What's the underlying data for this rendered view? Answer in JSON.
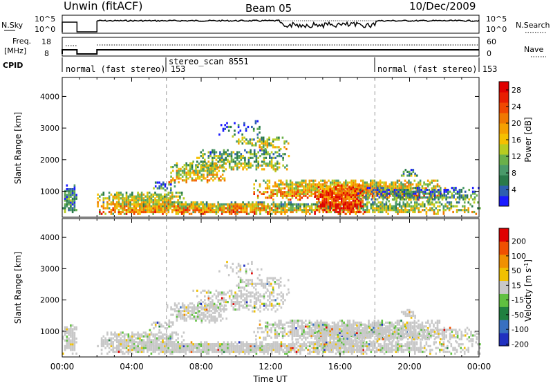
{
  "header": {
    "title": "Unwin (fitACF)",
    "beam": "Beam 05",
    "date": "10/Dec/2009"
  },
  "noise_panel": {
    "left_label": "N.Sky",
    "left_ticks": [
      "10^5",
      "10^0"
    ],
    "right_label": "N.Search",
    "right_ticks": [
      "10^5",
      "10^0"
    ]
  },
  "freq_panel": {
    "left_label_1": "Freq.",
    "left_label_2": "[MHz]",
    "left_ticks": [
      "18",
      "8"
    ],
    "right_label": "Nave",
    "right_ticks": [
      "60",
      "0"
    ]
  },
  "cpid": {
    "label": "CPID",
    "segments": [
      "normal (fast stereo) 153",
      "stereo_scan 8551",
      "normal (fast stereo) 153"
    ]
  },
  "chart_data": [
    {
      "type": "heatmap",
      "name_text": "Power",
      "xlabel": "Time UT",
      "ylabel": "Slant Range [km]",
      "x_ticks": [
        "00:00",
        "04:00",
        "08:00",
        "12:00",
        "16:00",
        "20:00",
        "00:00"
      ],
      "y_ticks": [
        1000,
        2000,
        3000,
        4000
      ],
      "ylim": [
        180,
        4600
      ],
      "colorbar": {
        "label": "Power [dB]",
        "ticks": [
          4,
          8,
          12,
          16,
          20,
          24,
          28
        ],
        "colors": [
          "#1a1aff",
          "#2e5fb0",
          "#2a7a4a",
          "#4a9a6a",
          "#6ab04a",
          "#b8cc20",
          "#f5c000",
          "#f5a000",
          "#f07800",
          "#f04800",
          "#e81e00",
          "#e00000"
        ]
      },
      "dashed_times_h": [
        6,
        18
      ]
    },
    {
      "type": "heatmap",
      "name_text": "Velocity",
      "xlabel": "Time UT",
      "ylabel": "Slant Range [km]",
      "x_ticks": [
        "00:00",
        "04:00",
        "08:00",
        "12:00",
        "16:00",
        "20:00",
        "00:00"
      ],
      "y_ticks": [
        1000,
        2000,
        3000,
        4000
      ],
      "ylim": [
        180,
        4600
      ],
      "colorbar": {
        "label": "Velocity [m s-1]",
        "ticks": [
          200,
          100,
          50,
          15,
          -15,
          -50,
          -100,
          -200
        ],
        "colors": [
          "#2030c0",
          "#3870c0",
          "#208040",
          "#60c040",
          "#c8c8c8",
          "#f0c000",
          "#f09000",
          "#f05000",
          "#e00000"
        ]
      },
      "dashed_times_h": [
        6,
        18
      ]
    }
  ]
}
